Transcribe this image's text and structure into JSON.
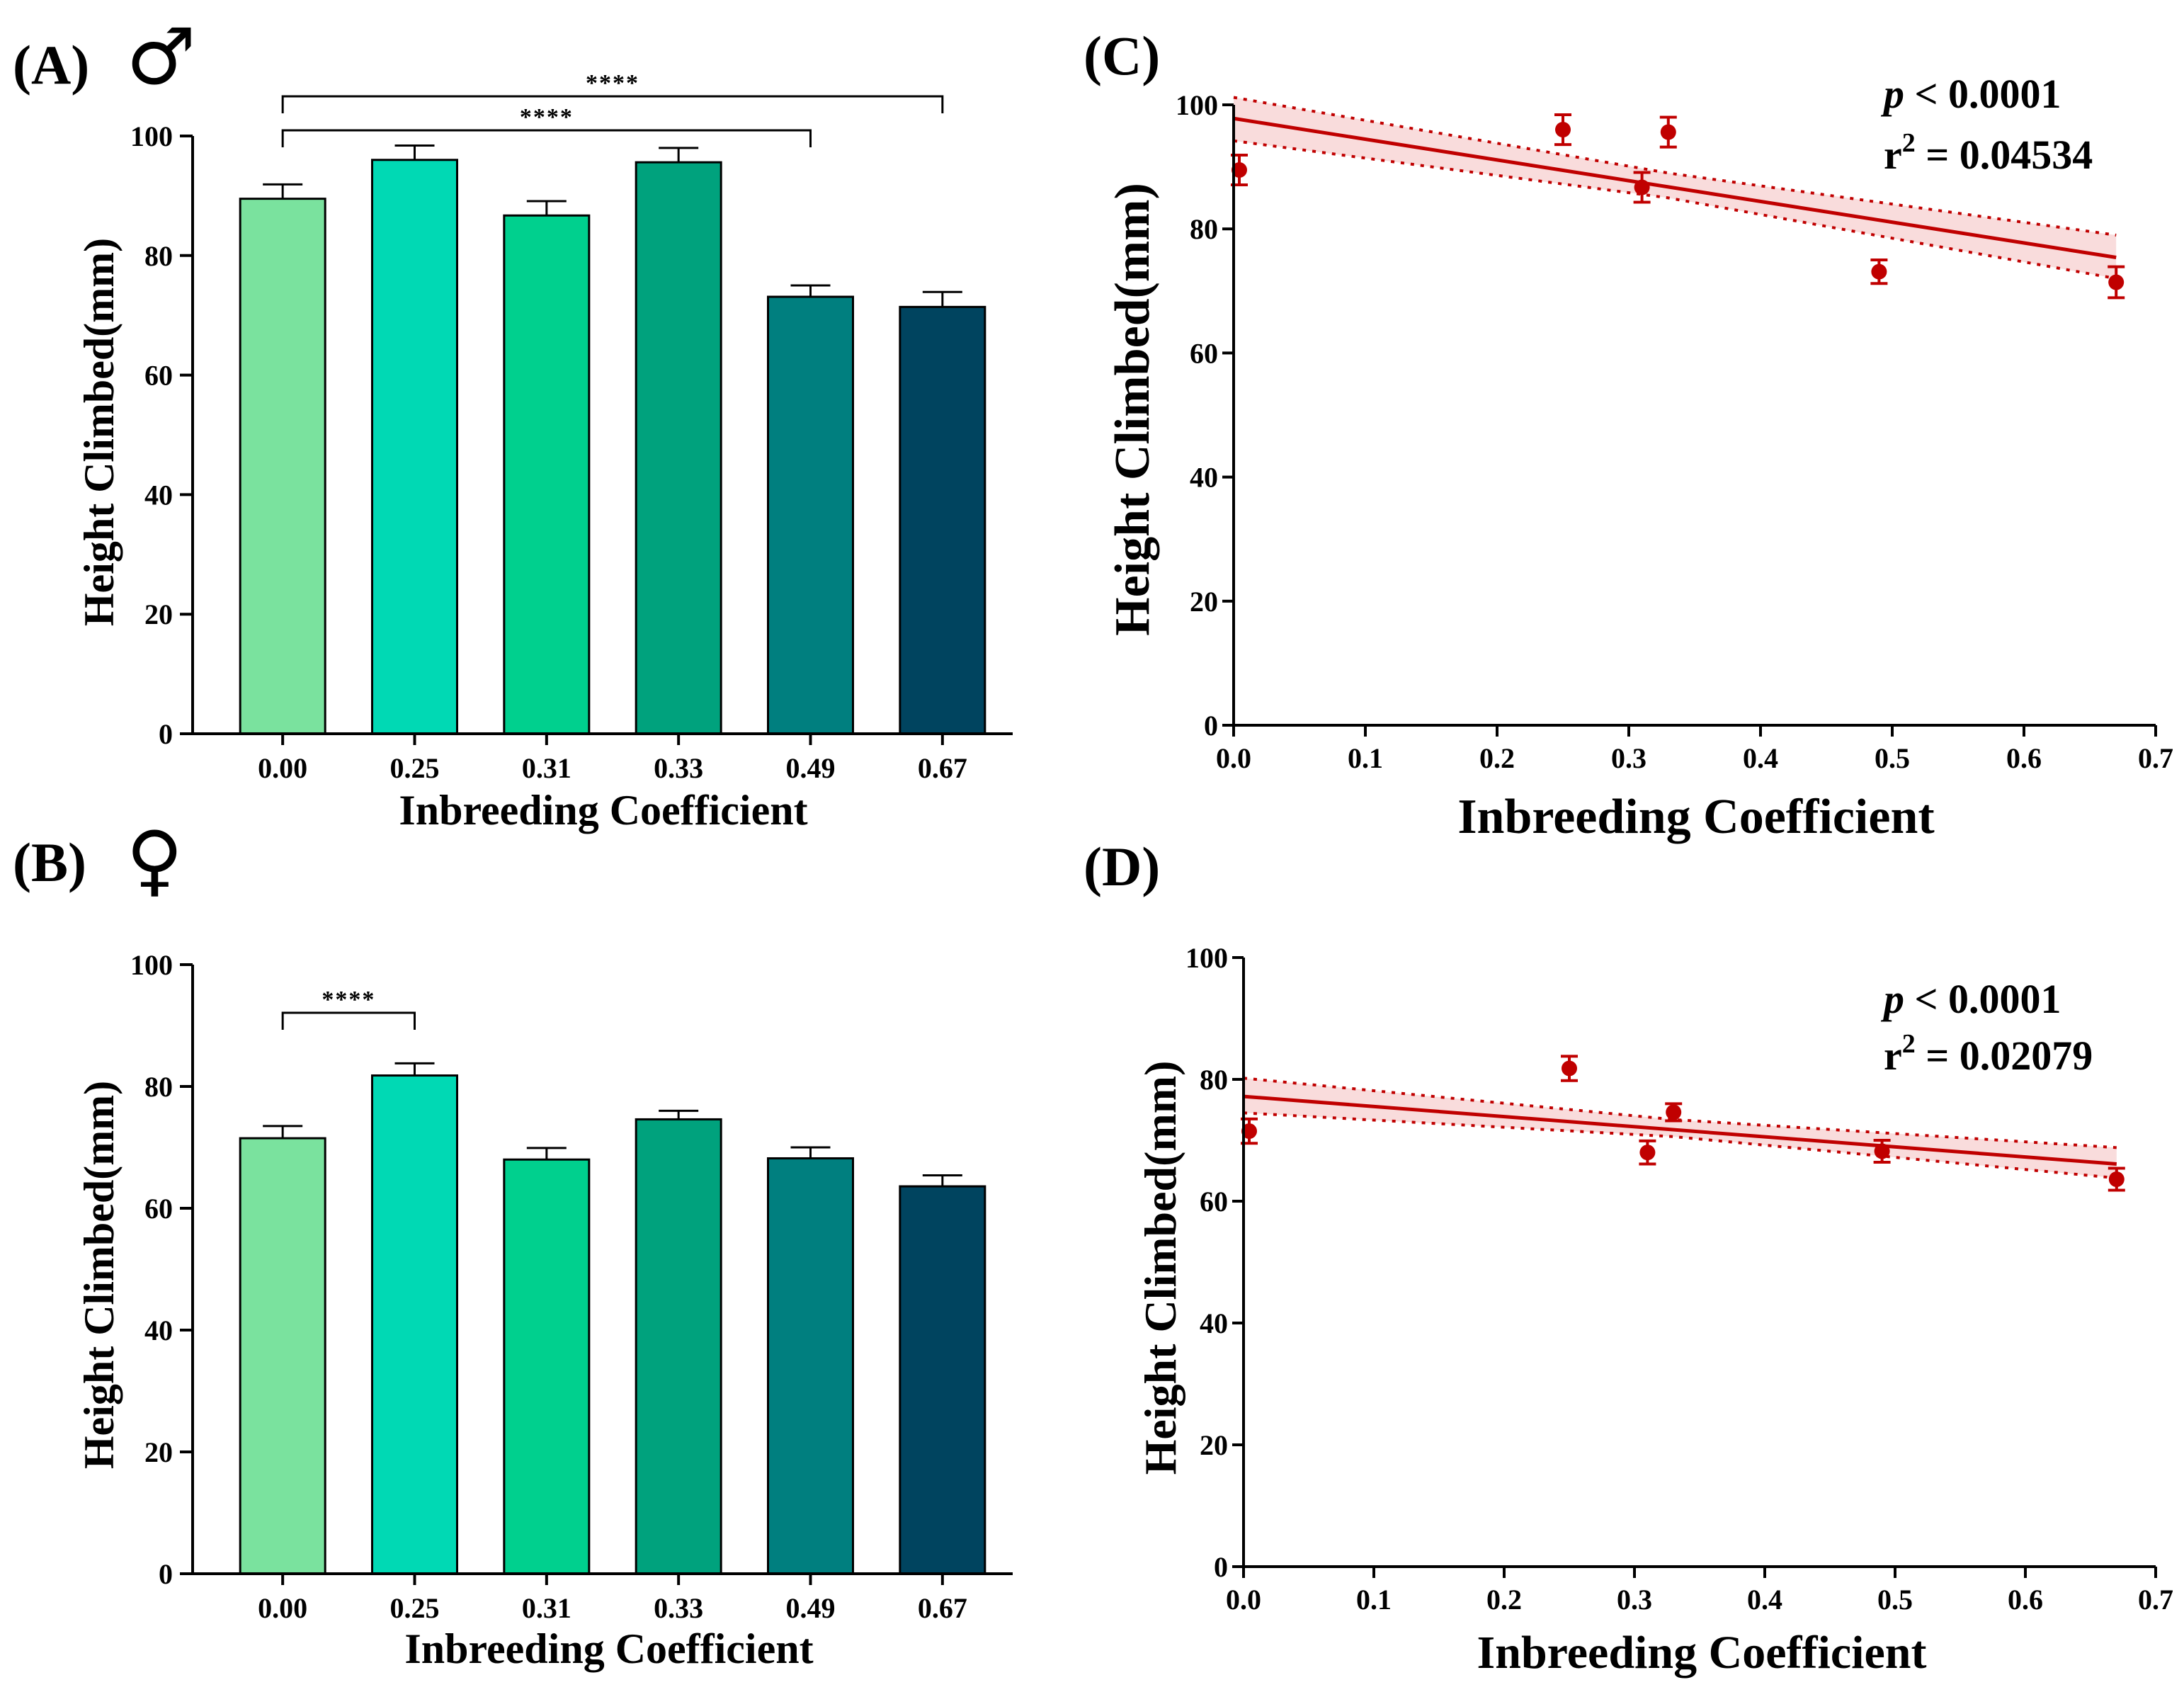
{
  "chart_data": [
    {
      "id": "A",
      "type": "bar",
      "panel_label": "(A)",
      "sex_symbol": "♂",
      "categories": [
        "0.00",
        "0.25",
        "0.31",
        "0.33",
        "0.49",
        "0.67"
      ],
      "values": [
        89.5,
        96.0,
        86.7,
        95.6,
        73.1,
        71.4
      ],
      "errors": [
        2.4,
        2.4,
        2.4,
        2.4,
        1.9,
        2.5
      ],
      "colors": [
        "#7ae29e",
        "#00d9b4",
        "#00d08e",
        "#00a27d",
        "#007f7f",
        "#00445f"
      ],
      "xlabel": "Inbreeding Coefficient",
      "ylabel": "Height Climbed(mm)",
      "ylim": [
        0,
        100
      ],
      "yticks": [
        "0",
        "20",
        "40",
        "60",
        "80",
        "100"
      ],
      "significance": [
        {
          "from": "0.00",
          "to": "0.67",
          "label": "****"
        },
        {
          "from": "0.00",
          "to": "0.49",
          "label": "****"
        }
      ]
    },
    {
      "id": "B",
      "type": "bar",
      "panel_label": "(B)",
      "sex_symbol": "♀",
      "categories": [
        "0.00",
        "0.25",
        "0.31",
        "0.33",
        "0.49",
        "0.67"
      ],
      "values": [
        71.5,
        81.8,
        68.0,
        74.6,
        68.2,
        63.6
      ],
      "errors": [
        2.0,
        2.0,
        1.9,
        1.4,
        1.8,
        1.8
      ],
      "colors": [
        "#7ae29e",
        "#00d9b4",
        "#00d08e",
        "#00a27d",
        "#007f7f",
        "#00445f"
      ],
      "xlabel": "Inbreeding Coefficient",
      "ylabel": "Height Climbed(mm)",
      "ylim": [
        0,
        100
      ],
      "yticks": [
        "0",
        "20",
        "40",
        "60",
        "80",
        "100"
      ],
      "significance": [
        {
          "from": "0.00",
          "to": "0.25",
          "label": "****"
        }
      ]
    },
    {
      "id": "C",
      "type": "scatter",
      "panel_label": "(C)",
      "x": [
        0.0,
        0.25,
        0.31,
        0.33,
        0.49,
        0.67
      ],
      "y": [
        89.5,
        96.0,
        86.7,
        95.6,
        73.1,
        71.4
      ],
      "errors": [
        2.4,
        2.4,
        2.4,
        2.4,
        1.9,
        2.5
      ],
      "regression": {
        "x": [
          0.0,
          0.67
        ],
        "y": [
          97.8,
          75.4
        ]
      },
      "confidence_band": {
        "x": [
          0.0,
          0.33,
          0.67
        ],
        "upper": [
          101.2,
          89.0,
          79.0
        ],
        "lower": [
          94.2,
          85.0,
          72.0
        ]
      },
      "point_color": "#c00000",
      "line_color": "#c00000",
      "band_color": "#f9dcdc",
      "xlabel": "Inbreeding Coefficient",
      "ylabel": "Height Climbed(mm)",
      "xlim": [
        0,
        0.7
      ],
      "ylim": [
        0,
        100
      ],
      "xticks": [
        "0.0",
        "0.1",
        "0.2",
        "0.3",
        "0.4",
        "0.5",
        "0.6",
        "0.7"
      ],
      "yticks": [
        "0",
        "20",
        "40",
        "60",
        "80",
        "100"
      ],
      "p_text": "p",
      "p_rest": " < 0.0001",
      "r_text": "r",
      "r_sup": "2",
      "r_rest": " = 0.04534"
    },
    {
      "id": "D",
      "type": "scatter",
      "panel_label": "(D)",
      "x": [
        0.0,
        0.25,
        0.31,
        0.33,
        0.49,
        0.67
      ],
      "y": [
        71.5,
        81.8,
        68.0,
        74.6,
        68.2,
        63.6
      ],
      "errors": [
        2.0,
        2.0,
        1.9,
        1.4,
        1.8,
        1.8
      ],
      "regression": {
        "x": [
          0.0,
          0.67
        ],
        "y": [
          77.2,
          66.1
        ]
      },
      "confidence_band": {
        "x": [
          0.0,
          0.33,
          0.67
        ],
        "upper": [
          80.2,
          73.4,
          68.8
        ],
        "lower": [
          74.5,
          70.6,
          63.8
        ]
      },
      "point_color": "#c00000",
      "line_color": "#c00000",
      "band_color": "#f9dcdc",
      "xlabel": "Inbreeding Coefficient",
      "ylabel": "Height Climbed(mm)",
      "xlim": [
        0,
        0.7
      ],
      "ylim": [
        0,
        100
      ],
      "xticks": [
        "0.0",
        "0.1",
        "0.2",
        "0.3",
        "0.4",
        "0.5",
        "0.6",
        "0.7"
      ],
      "yticks": [
        "0",
        "20",
        "40",
        "60",
        "80",
        "100"
      ],
      "p_text": "p",
      "p_rest": " < 0.0001",
      "r_text": "r",
      "r_sup": "2",
      "r_rest": " = 0.02079"
    }
  ]
}
